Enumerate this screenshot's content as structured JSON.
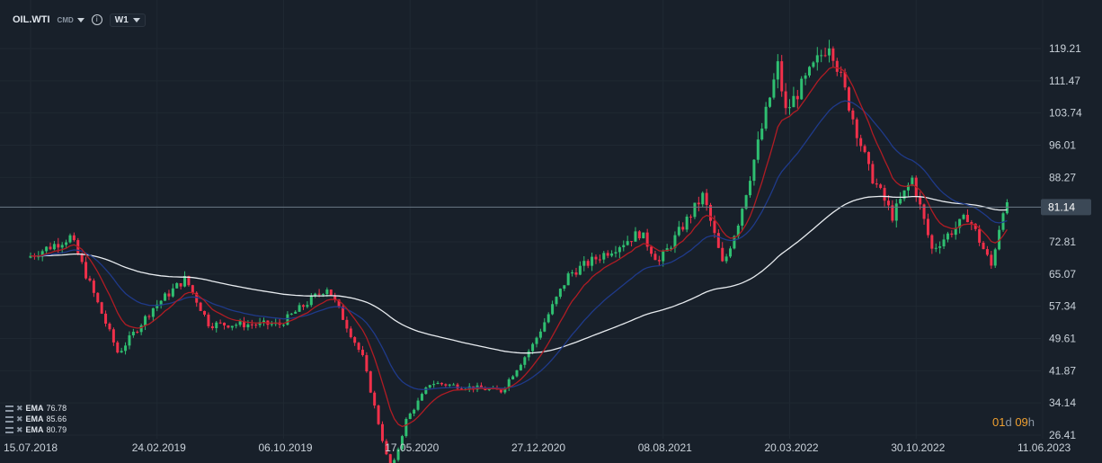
{
  "toolbar": {
    "symbol": "OIL.WTI",
    "type": "CMD",
    "info": "i",
    "timeframe": "W1"
  },
  "ema_indicators": [
    {
      "name": "EMA",
      "value": "76.78",
      "color": "#e8ecf0"
    },
    {
      "name": "EMA",
      "value": "85.66",
      "color": "#1f3a8a"
    },
    {
      "name": "EMA",
      "value": "80.79",
      "color": "#b01c24"
    }
  ],
  "countdown": {
    "d": "01",
    "d_unit": "d",
    "h": "09",
    "h_unit": "h"
  },
  "colors": {
    "background": "#18202a",
    "up": "#2fbf71",
    "down": "#f0304a",
    "grid": "#1f2832",
    "price_tag": "#3b4856"
  },
  "chart_data": {
    "type": "candlestick",
    "timeframe": "W1",
    "x_tick_labels": [
      "15.07.2018",
      "24.02.2019",
      "06.10.2019",
      "17.05.2020",
      "27.12.2020",
      "08.08.2021",
      "20.03.2022",
      "30.10.2022",
      "11.06.2023"
    ],
    "y_tick_labels": [
      "119.21",
      "111.47",
      "103.74",
      "96.01",
      "88.27",
      "81.14",
      "72.81",
      "65.07",
      "57.34",
      "49.61",
      "41.87",
      "34.14",
      "26.41"
    ],
    "ylim": [
      26.41,
      119.21
    ],
    "current_price": "81.14",
    "grid": true,
    "anchors": [
      [
        "15.07.2018",
        69
      ],
      [
        "01.10.2018",
        74
      ],
      [
        "24.12.2018",
        46
      ],
      [
        "24.02.2019",
        57
      ],
      [
        "22.04.2019",
        64
      ],
      [
        "03.06.2019",
        53
      ],
      [
        "06.10.2019",
        53
      ],
      [
        "30.12.2019",
        62
      ],
      [
        "01.03.2020",
        45
      ],
      [
        "20.04.2020",
        17
      ],
      [
        "17.05.2020",
        30
      ],
      [
        "29.06.2020",
        39
      ],
      [
        "01.11.2020",
        37
      ],
      [
        "27.12.2020",
        48
      ],
      [
        "01.03.2021",
        65
      ],
      [
        "05.07.2021",
        75
      ],
      [
        "08.08.2021",
        68
      ],
      [
        "25.10.2021",
        84
      ],
      [
        "29.11.2021",
        67
      ],
      [
        "27.12.2021",
        78
      ],
      [
        "06.03.2022",
        115
      ],
      [
        "20.03.2022",
        104
      ],
      [
        "06.06.2022",
        121
      ],
      [
        "14.08.2022",
        90
      ],
      [
        "25.09.2022",
        79
      ],
      [
        "30.10.2022",
        88
      ],
      [
        "04.12.2022",
        71
      ],
      [
        "06.02.2023",
        79
      ],
      [
        "19.03.2023",
        67
      ],
      [
        "09.04.2023",
        81
      ]
    ],
    "ema_lines": [
      {
        "name": "EMA",
        "value": 76.78,
        "color": "#e8ecf0",
        "period": 100
      },
      {
        "name": "EMA",
        "value": 85.66,
        "color": "#1f3a8a",
        "period": 26
      },
      {
        "name": "EMA",
        "value": 80.79,
        "color": "#b01c24",
        "period": 10
      }
    ]
  }
}
